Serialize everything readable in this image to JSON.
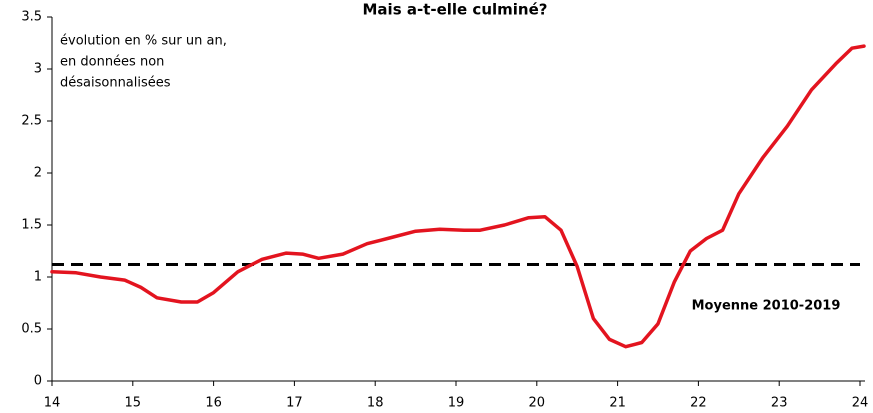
{
  "chart_data": {
    "type": "line",
    "title": "Mais a-t-elle culminé?",
    "annotation": [
      "évolution en % sur un an,",
      "en données non",
      "désaisonnalisées"
    ],
    "series": [
      {
        "name": "évolution",
        "color": "#e3141f",
        "x": [
          14.0,
          14.3,
          14.6,
          14.9,
          15.1,
          15.3,
          15.6,
          15.8,
          16.0,
          16.3,
          16.6,
          16.9,
          17.1,
          17.3,
          17.6,
          17.9,
          18.2,
          18.5,
          18.8,
          19.1,
          19.3,
          19.6,
          19.9,
          20.1,
          20.3,
          20.5,
          20.7,
          20.9,
          21.1,
          21.3,
          21.5,
          21.7,
          21.9,
          22.1,
          22.3,
          22.5,
          22.8,
          23.1,
          23.4,
          23.7,
          23.9,
          24.05
        ],
        "values": [
          1.05,
          1.04,
          1.0,
          0.97,
          0.9,
          0.8,
          0.76,
          0.76,
          0.85,
          1.05,
          1.17,
          1.23,
          1.22,
          1.18,
          1.22,
          1.32,
          1.38,
          1.44,
          1.46,
          1.45,
          1.45,
          1.5,
          1.57,
          1.58,
          1.45,
          1.1,
          0.6,
          0.4,
          0.33,
          0.37,
          0.55,
          0.95,
          1.25,
          1.37,
          1.45,
          1.8,
          2.15,
          2.45,
          2.8,
          3.05,
          3.2,
          3.22
        ]
      }
    ],
    "reference_line": {
      "value": 1.12,
      "label": "Moyenne 2010-2019",
      "color": "#000000"
    },
    "xlim": [
      14,
      24
    ],
    "xticks": [
      14,
      15,
      16,
      17,
      18,
      19,
      20,
      21,
      22,
      23,
      24
    ],
    "ylim": [
      0,
      3.5
    ],
    "yticks": [
      0,
      0.5,
      1,
      1.5,
      2,
      2.5,
      3,
      3.5
    ],
    "grid": false
  }
}
